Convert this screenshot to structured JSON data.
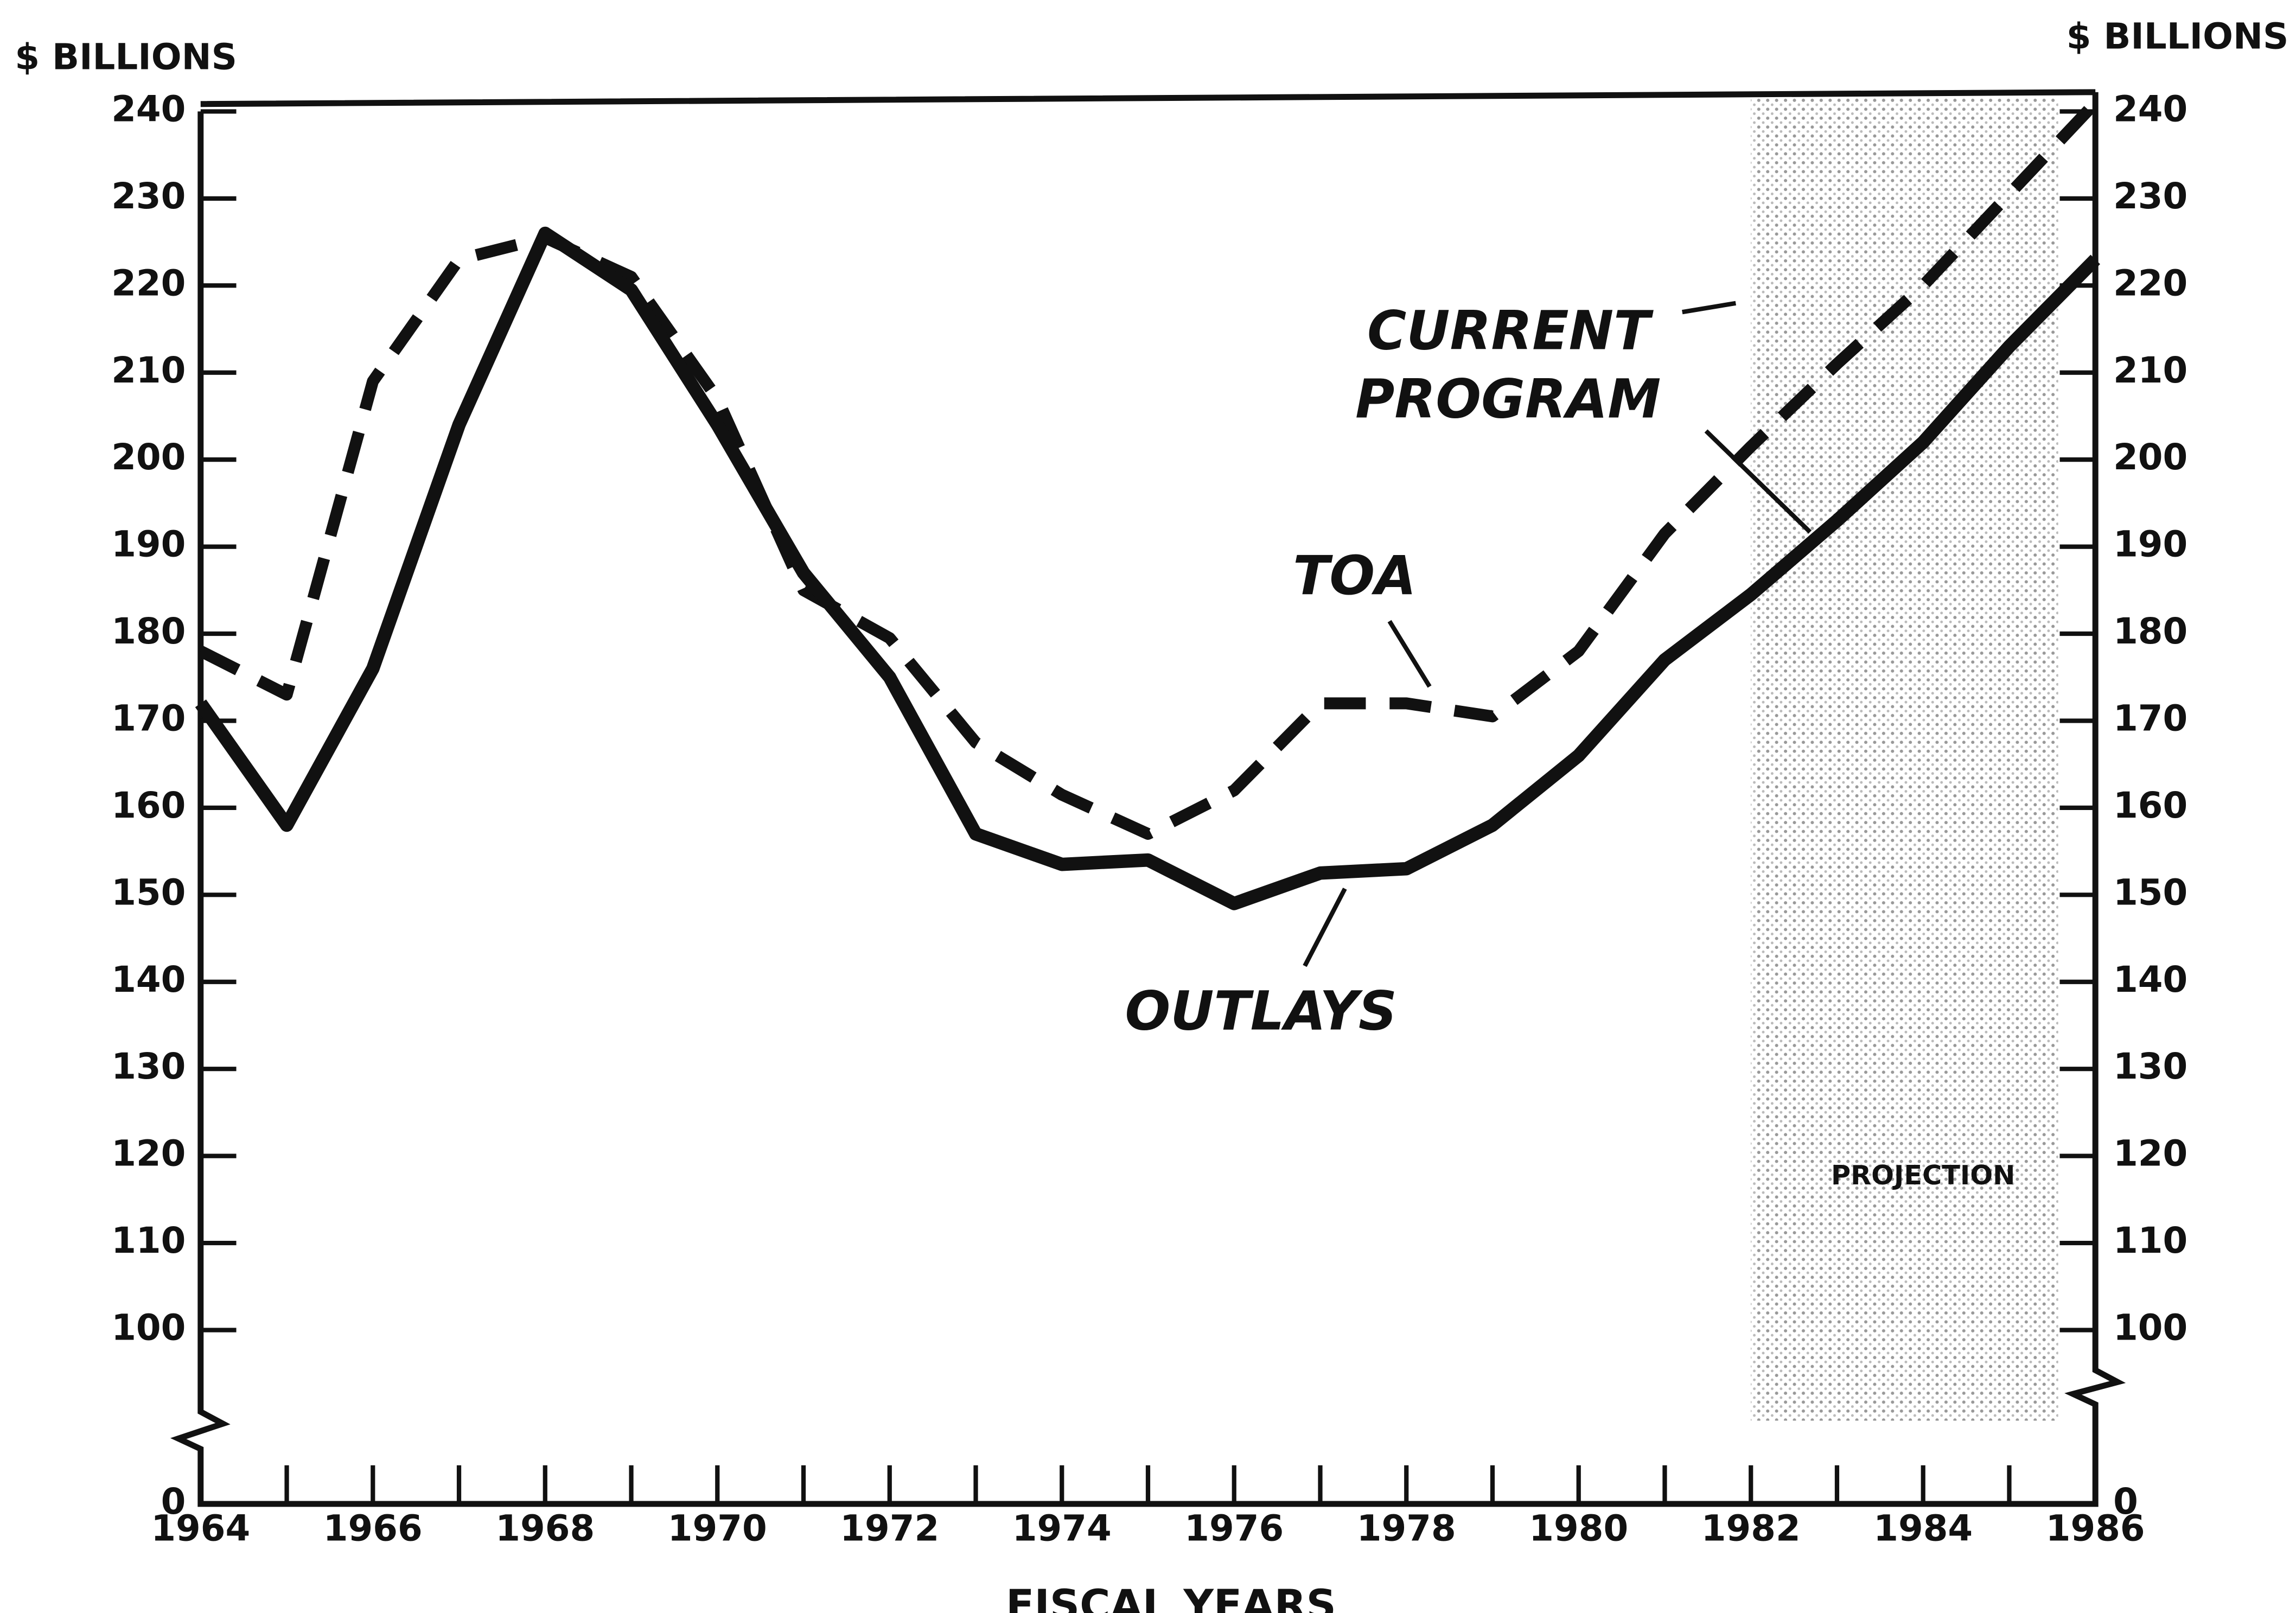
{
  "chart_data": {
    "type": "line",
    "y_axis_label": "$ BILLIONS",
    "y2_axis_label": "$ BILLIONS",
    "x_axis_label": "FISCAL YEARS",
    "x": [
      1964,
      1965,
      1966,
      1967,
      1968,
      1969,
      1970,
      1971,
      1972,
      1973,
      1974,
      1975,
      1976,
      1977,
      1978,
      1979,
      1980,
      1981,
      1982,
      1983,
      1984,
      1985,
      1986
    ],
    "series": [
      {
        "name": "TOA",
        "color": "#111111",
        "dashed": true,
        "values": [
          178,
          173,
          209,
          223,
          225.5,
          221,
          207,
          185,
          179.5,
          167.5,
          161.5,
          157,
          162,
          172,
          172,
          170.5,
          178,
          191.5,
          201.5,
          211,
          220,
          230.5,
          241
        ]
      },
      {
        "name": "OUTLAYS",
        "color": "#111111",
        "dashed": false,
        "values": [
          172,
          158,
          176,
          204,
          226,
          219.5,
          204,
          187,
          175,
          157,
          153.5,
          154,
          149,
          152.5,
          153,
          158,
          166,
          177,
          184.5,
          193,
          202,
          213,
          223
        ]
      }
    ],
    "annotations": [
      "CURRENT PROGRAM"
    ],
    "projection": {
      "label": "PROJECTION",
      "from": 1982,
      "to": 1986
    },
    "xlim": [
      1964,
      1986
    ],
    "xticks": [
      1964,
      1966,
      1968,
      1970,
      1972,
      1974,
      1976,
      1978,
      1980,
      1982,
      1984,
      1986
    ],
    "ylim": [
      0,
      240
    ],
    "yticks": [
      0,
      100,
      110,
      120,
      130,
      140,
      150,
      160,
      170,
      180,
      190,
      200,
      210,
      220,
      230,
      240
    ],
    "y2lim": [
      0,
      240
    ],
    "y2ticks": [
      0,
      100,
      110,
      120,
      130,
      140,
      150,
      160,
      170,
      180,
      190,
      200,
      210,
      220,
      230,
      240
    ],
    "grid": false
  }
}
